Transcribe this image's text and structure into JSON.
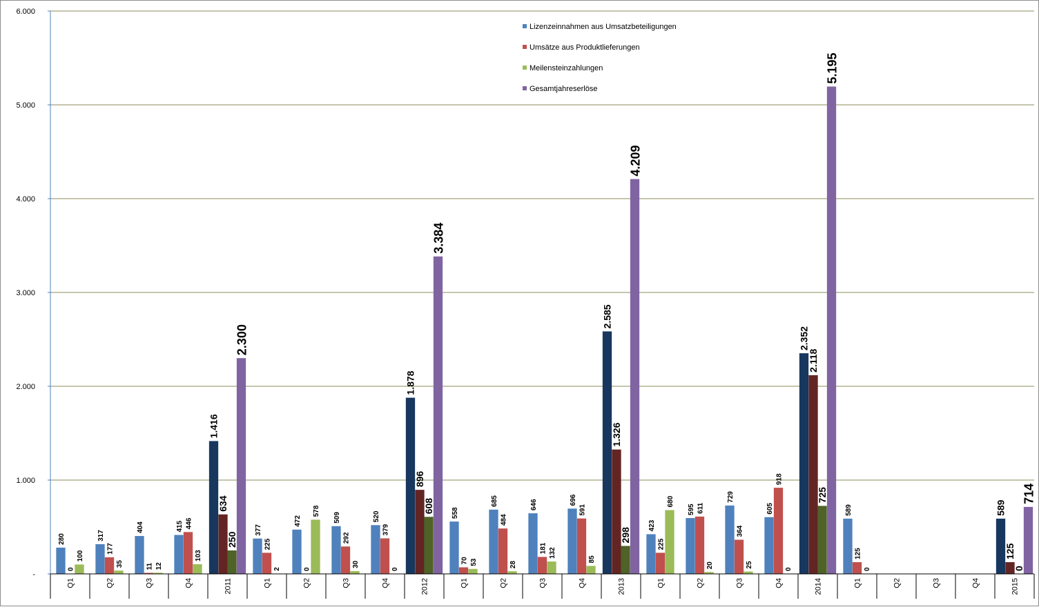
{
  "chart_data": {
    "type": "bar",
    "title": "",
    "xlabel": "",
    "ylabel": "",
    "ylim": [
      0,
      6000
    ],
    "y_ticks": [
      0,
      1000,
      2000,
      3000,
      4000,
      5000,
      6000
    ],
    "y_tick_labels": [
      "-",
      "1.000",
      "2.000",
      "3.000",
      "4.000",
      "5.000",
      "6.000"
    ],
    "grid": true,
    "legend_position": "top-center",
    "categories": [
      "Q1",
      "Q2",
      "Q3",
      "Q4",
      "2011",
      "Q1",
      "Q2",
      "Q3",
      "Q4",
      "2012",
      "Q1",
      "Q2",
      "Q3",
      "Q4",
      "2013",
      "Q1",
      "Q2",
      "Q3",
      "Q4",
      "2014",
      "Q1",
      "Q2",
      "Q3",
      "Q4",
      "2015"
    ],
    "annual_categories": [
      "2011",
      "2012",
      "2013",
      "2014",
      "2015"
    ],
    "series": [
      {
        "name": "Lizenzeinnahmen aus Umsatzbeteiligungen",
        "color": "#4f81bd",
        "annual_color": "#17375e",
        "values": [
          280,
          317,
          404,
          415,
          1416,
          377,
          472,
          509,
          520,
          1878,
          558,
          685,
          646,
          696,
          2585,
          423,
          595,
          729,
          605,
          2352,
          589,
          null,
          null,
          null,
          589
        ]
      },
      {
        "name": "Umsätze aus Produktlieferungen",
        "color": "#c0504d",
        "annual_color": "#632523",
        "values": [
          0,
          177,
          11,
          446,
          634,
          225,
          0,
          292,
          379,
          896,
          70,
          484,
          181,
          591,
          1326,
          225,
          611,
          364,
          918,
          2118,
          125,
          null,
          null,
          null,
          125
        ]
      },
      {
        "name": "Meilensteinzahlungen",
        "color": "#9bbb59",
        "annual_color": "#4f6228",
        "values": [
          100,
          35,
          12,
          103,
          250,
          2,
          578,
          30,
          0,
          608,
          53,
          28,
          132,
          85,
          298,
          680,
          20,
          25,
          0,
          725,
          0,
          null,
          null,
          null,
          0
        ]
      },
      {
        "name": "Gesamtjahreserlöse",
        "color": "#8064a2",
        "annual_color": "#8064a2",
        "values": [
          null,
          null,
          null,
          null,
          2300,
          null,
          null,
          null,
          null,
          3384,
          null,
          null,
          null,
          null,
          4209,
          null,
          null,
          null,
          null,
          5195,
          null,
          null,
          null,
          null,
          714
        ]
      }
    ],
    "value_label_text": {
      "0": [
        "280",
        "0",
        "100",
        null
      ],
      "1": [
        "317",
        "177",
        "35",
        null
      ],
      "2": [
        "404",
        "11",
        "12",
        null
      ],
      "3": [
        "415",
        "446",
        "103",
        null
      ],
      "4": [
        "1.416",
        "634",
        "250",
        "2.300"
      ],
      "5": [
        "377",
        "225",
        "2",
        null
      ],
      "6": [
        "472",
        "0",
        "578",
        null
      ],
      "7": [
        "509",
        "292",
        "30",
        null
      ],
      "8": [
        "520",
        "379",
        "0",
        null
      ],
      "9": [
        "1.878",
        "896",
        "608",
        "3.384"
      ],
      "10": [
        "558",
        "70",
        "53",
        null
      ],
      "11": [
        "685",
        "484",
        "28",
        null
      ],
      "12": [
        "646",
        "181",
        "132",
        null
      ],
      "13": [
        "696",
        "591",
        "85",
        null
      ],
      "14": [
        "2.585",
        "1.326",
        "298",
        "4.209"
      ],
      "15": [
        "423",
        "225",
        "680",
        null
      ],
      "16": [
        "595",
        "611",
        "20",
        null
      ],
      "17": [
        "729",
        "364",
        "25",
        null
      ],
      "18": [
        "605",
        "918",
        "0",
        null
      ],
      "19": [
        "2.352",
        "2.118",
        "725",
        "5.195"
      ],
      "20": [
        "589",
        "125",
        "0",
        null
      ],
      "21": [
        null,
        null,
        null,
        null
      ],
      "22": [
        null,
        null,
        null,
        null
      ],
      "23": [
        null,
        null,
        null,
        null
      ],
      "24": [
        "589",
        "125",
        "0",
        "714"
      ]
    }
  }
}
